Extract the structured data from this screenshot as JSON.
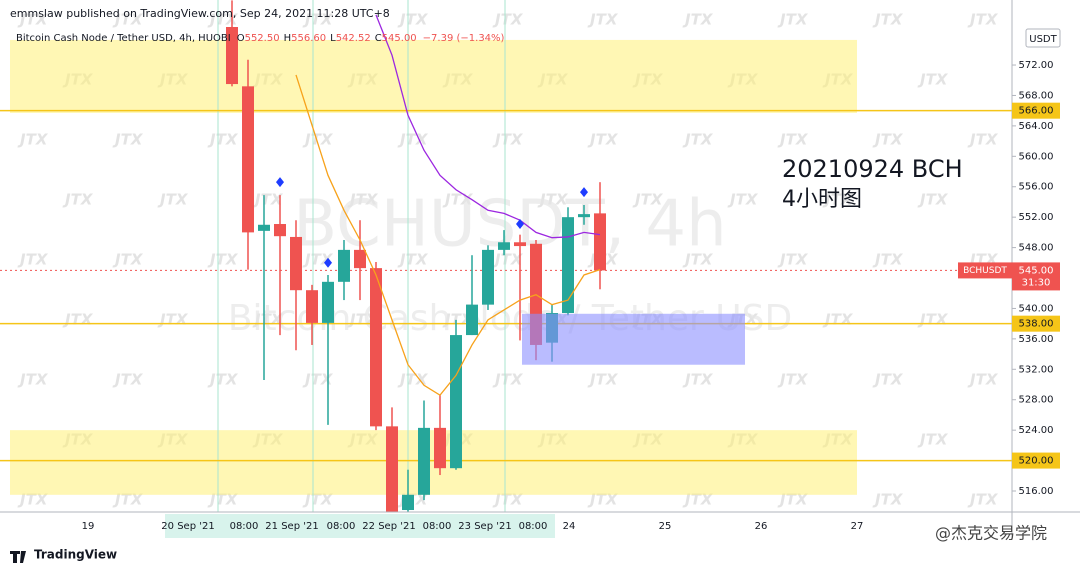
{
  "header": "emmslaw published on TradingView.com, Sep 24, 2021 11:28 UTC+8",
  "footer_logo": "TradingView",
  "footer_credit": "@杰克交易学院",
  "watermark_tile": "JTX",
  "chart_data": {
    "type": "candlestick",
    "symbol_title": "Bitcoin Cash Node / Tether USD, 4h, HUOBI",
    "legend_items": [
      {
        "key": "O",
        "value": 552.5,
        "label": "552.50"
      },
      {
        "key": "H",
        "value": 556.6,
        "label": "556.60"
      },
      {
        "key": "L",
        "value": 542.52,
        "label": "542.52"
      },
      {
        "key": "C",
        "value": 545.0,
        "label": "545.00"
      }
    ],
    "change_text": "−7.39 (−1.34%)",
    "watermark_symbol": "BCHUSDT, 4h",
    "watermark_name": "Bitcoin Cash Node / Tether USD",
    "annotation_lines": [
      "20210924 BCH",
      "4小时图"
    ],
    "currency": "USDT",
    "open": [
      577.0,
      569.2,
      550.2,
      551.1,
      549.4,
      542.4,
      538.1,
      543.5,
      547.7,
      545.3,
      524.5,
      513.5,
      515.5,
      524.3,
      519.0,
      536.5,
      540.5,
      547.7,
      548.7,
      548.5,
      535.5,
      539.4,
      552.0,
      552.5
    ],
    "high": [
      580.5,
      572.7,
      554.9,
      554.9,
      551.6,
      543.1,
      544.4,
      549.0,
      551.6,
      546.1,
      527.0,
      518.8,
      527.9,
      528.6,
      538.5,
      547.0,
      548.3,
      550.3,
      549.7,
      549.0,
      540.5,
      553.3,
      553.6,
      556.6
    ],
    "low": [
      569.2,
      545.1,
      530.6,
      536.5,
      534.5,
      535.2,
      524.7,
      541.1,
      541.1,
      524.0,
      510.0,
      513.2,
      514.8,
      518.1,
      518.8,
      536.5,
      539.8,
      547.0,
      535.8,
      533.2,
      533.0,
      539.1,
      551.0,
      542.52
    ],
    "close": [
      569.5,
      550.0,
      551.0,
      549.5,
      542.4,
      538.1,
      543.5,
      547.7,
      545.3,
      524.5,
      512.0,
      515.5,
      524.3,
      519.0,
      536.5,
      540.5,
      547.7,
      548.7,
      548.2,
      535.2,
      539.4,
      552.0,
      552.4,
      545.0
    ],
    "up_color": "#26a69a",
    "down_color": "#ef5350",
    "lines": [
      {
        "color": "#f7a21b",
        "values": [
          null,
          null,
          null,
          null,
          570.7,
          564.1,
          557.5,
          552.9,
          549.0,
          544.4,
          538.5,
          532.6,
          529.9,
          528.6,
          531.2,
          535.2,
          538.5,
          539.8,
          541.1,
          541.8,
          540.5,
          541.1,
          544.4,
          545.1
        ]
      },
      {
        "color": "#9c27e0",
        "values": [
          null,
          null,
          null,
          null,
          null,
          null,
          null,
          null,
          null,
          578.6,
          573.3,
          565.4,
          560.8,
          557.5,
          555.6,
          554.3,
          552.9,
          552.5,
          551.6,
          550.0,
          549.3,
          549.4,
          550.0,
          549.7
        ]
      }
    ],
    "signals": {
      "color": "#1e3cff",
      "values": [
        null,
        null,
        null,
        556.6,
        null,
        null,
        546.0,
        null,
        null,
        null,
        null,
        null,
        null,
        null,
        null,
        null,
        null,
        null,
        551.1,
        null,
        null,
        null,
        555.3,
        null
      ]
    },
    "zones": [
      {
        "from": 565.7,
        "to": 575.3,
        "color": "#fff176"
      },
      {
        "from": 515.5,
        "to": 524.0,
        "color": "#fff176"
      }
    ],
    "box": {
      "from": 532.6,
      "to": 539.3,
      "color": "#8c8fff"
    },
    "levels": [
      {
        "value": 566,
        "label": "566.00",
        "color": "#f5c518"
      },
      {
        "value": 538,
        "label": "538.00",
        "color": "#f5c518"
      },
      {
        "value": 520,
        "label": "520.00",
        "color": "#f5c518"
      }
    ],
    "price_tag": {
      "value": 545,
      "label": "545.00",
      "countdown": "31:30",
      "symbol": "BCHUSDT",
      "color": "#ef5350"
    },
    "ylim": [
      513.24,
      580.55
    ],
    "yticks": [
      {
        "value": 572,
        "label": "572.00"
      },
      {
        "value": 568,
        "label": "568.00"
      },
      {
        "value": 564,
        "label": "564.00"
      },
      {
        "value": 560,
        "label": "560.00"
      },
      {
        "value": 556,
        "label": "556.00"
      },
      {
        "value": 552,
        "label": "552.00"
      },
      {
        "value": 548,
        "label": "548.00"
      },
      {
        "value": 540,
        "label": "540.00"
      },
      {
        "value": 536,
        "label": "536.00"
      },
      {
        "value": 532,
        "label": "532.00"
      },
      {
        "value": 528,
        "label": "528.00"
      },
      {
        "value": 524,
        "label": "524.00"
      },
      {
        "value": 516,
        "label": "516.00"
      }
    ],
    "xticks": [
      "19",
      "20 Sep '21",
      "08:00",
      "21 Sep '21",
      "08:00",
      "22 Sep '21",
      "08:00",
      "23 Sep '21",
      "08:00",
      "24",
      "25",
      "26",
      "27"
    ]
  }
}
